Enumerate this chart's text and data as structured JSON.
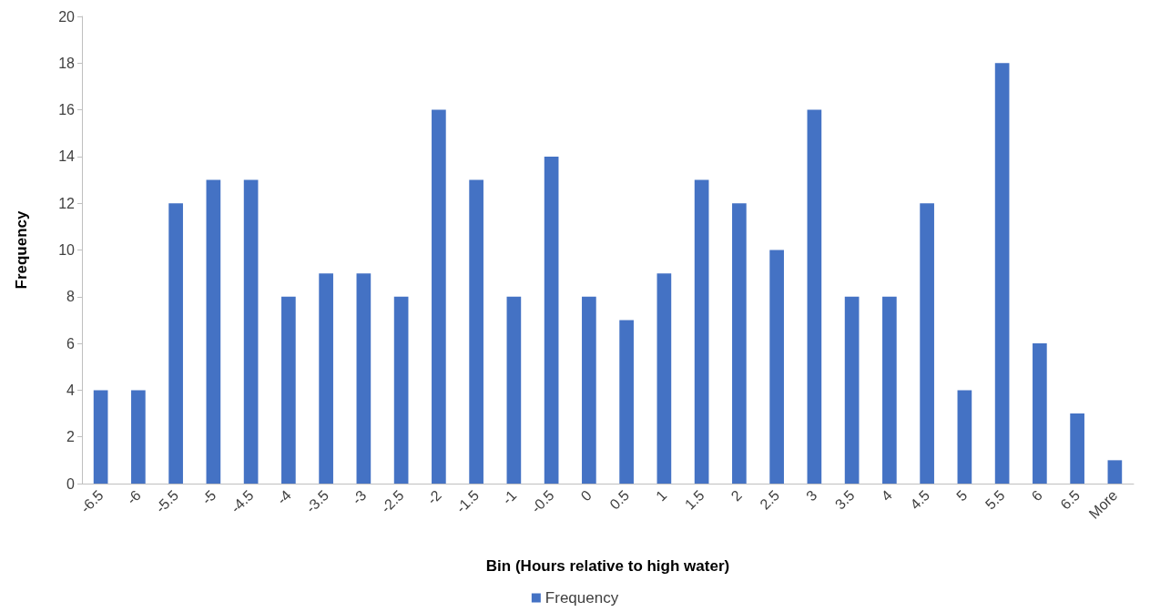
{
  "chart_data": {
    "type": "bar",
    "xlabel": "Bin (Hours relative to high water)",
    "ylabel": "Frequency",
    "categories": [
      "-6.5",
      "-6",
      "-5.5",
      "-5",
      "-4.5",
      "-4",
      "-3.5",
      "-3",
      "-2.5",
      "-2",
      "-1.5",
      "-1",
      "-0.5",
      "0",
      "0.5",
      "1",
      "1.5",
      "2",
      "2.5",
      "3",
      "3.5",
      "4",
      "4.5",
      "5",
      "5.5",
      "6",
      "6.5",
      "More"
    ],
    "series": [
      {
        "name": "Frequency",
        "color": "#4472c4",
        "values": [
          4,
          4,
          12,
          13,
          13,
          8,
          9,
          9,
          8,
          16,
          13,
          8,
          14,
          8,
          7,
          9,
          13,
          12,
          10,
          16,
          8,
          8,
          12,
          4,
          18,
          6,
          3,
          1
        ]
      }
    ],
    "ylim": [
      0,
      20
    ],
    "yticks": [
      0,
      2,
      4,
      6,
      8,
      10,
      12,
      14,
      16,
      18,
      20
    ],
    "grid": false,
    "legend": "bottom"
  }
}
